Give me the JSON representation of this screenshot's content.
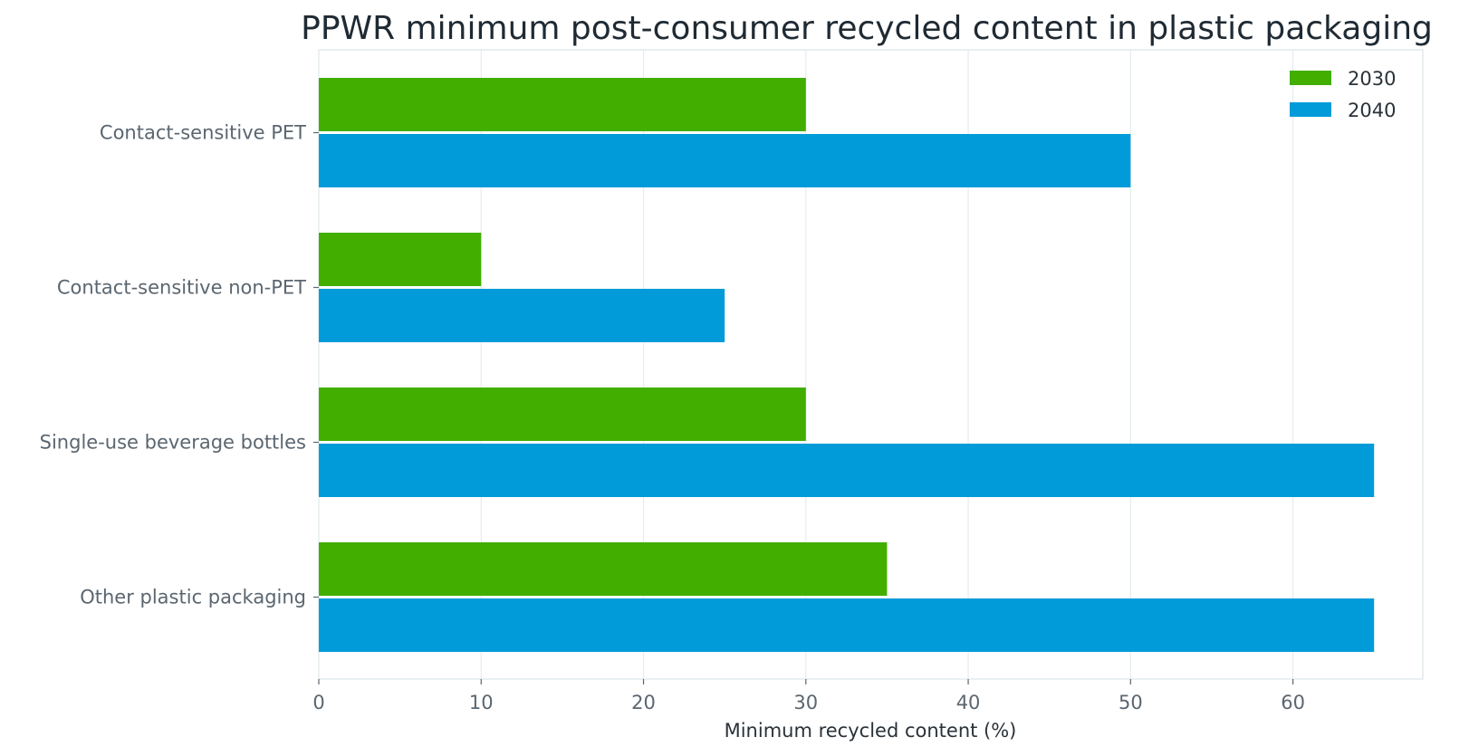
{
  "chart_data": {
    "type": "bar",
    "orientation": "horizontal",
    "title": "PPWR minimum post-consumer recycled content in plastic packaging",
    "xlabel": "Minimum recycled content (%)",
    "ylabel": "",
    "categories": [
      "Contact-sensitive PET",
      "Contact-sensitive non-PET",
      "Single-use beverage bottles",
      "Other plastic packaging"
    ],
    "series": [
      {
        "name": "2030",
        "color": "#41ae00",
        "values": [
          30,
          10,
          30,
          35
        ]
      },
      {
        "name": "2040",
        "color": "#009bd8",
        "values": [
          50,
          25,
          65,
          65
        ]
      }
    ],
    "xlim": [
      0,
      68
    ],
    "xticks": [
      0,
      10,
      20,
      30,
      40,
      50,
      60
    ],
    "grid": "vertical",
    "legend_position": "top-right"
  }
}
